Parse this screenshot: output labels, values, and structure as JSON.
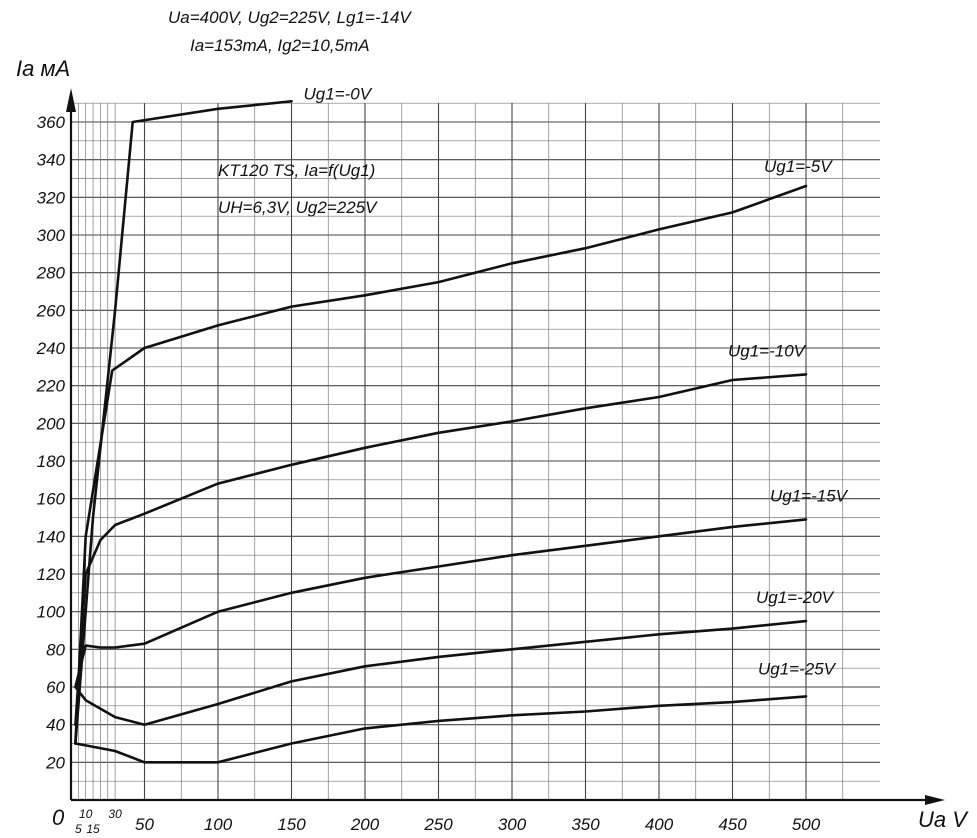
{
  "header": {
    "line1": "Ua=400V, Ug2=225V, Lg1=-14V",
    "line2": "Ia=153mA, Ig2=10,5mA"
  },
  "chart_data": {
    "type": "line",
    "title": "KT120 TS, Ia=f(Ug1)",
    "subtitle": "UH=6,3V, Ug2=225V",
    "xlabel": "Ua V",
    "ylabel": "Ia мA",
    "origin_label": "0",
    "xlim": [
      0,
      500
    ],
    "ylim": [
      0,
      370
    ],
    "grid": true,
    "y_ticks": [
      20,
      40,
      60,
      80,
      100,
      120,
      140,
      160,
      180,
      200,
      220,
      240,
      260,
      280,
      300,
      320,
      340,
      360
    ],
    "x_ticks_major": [
      {
        "value": 50,
        "label": "50"
      },
      {
        "value": 100,
        "label": "100"
      },
      {
        "value": 150,
        "label": "150"
      },
      {
        "value": 200,
        "label": "200"
      },
      {
        "value": 250,
        "label": "250"
      },
      {
        "value": 300,
        "label": "300"
      },
      {
        "value": 350,
        "label": "350"
      },
      {
        "value": 400,
        "label": "400"
      },
      {
        "value": 450,
        "label": "450"
      },
      {
        "value": 500,
        "label": "500"
      }
    ],
    "x_ticks_small_upper": [
      {
        "value": 10,
        "label": "10"
      },
      {
        "value": 30,
        "label": "30"
      }
    ],
    "x_ticks_small_lower": [
      {
        "value": 5,
        "label": "5"
      },
      {
        "value": 15,
        "label": "15"
      }
    ],
    "series": [
      {
        "name": "Ug1=-0V",
        "x": [
          3,
          15,
          30,
          42,
          100,
          150
        ],
        "y": [
          30,
          150,
          260,
          360,
          367,
          371
        ]
      },
      {
        "name": "Ug1=-5V",
        "x": [
          3,
          10,
          28,
          50,
          100,
          150,
          200,
          250,
          300,
          350,
          400,
          450,
          500
        ],
        "y": [
          30,
          140,
          228,
          240,
          252,
          262,
          268,
          275,
          285,
          293,
          303,
          312,
          326
        ]
      },
      {
        "name": "Ug1=-10V",
        "x": [
          3,
          10,
          20,
          30,
          50,
          100,
          150,
          200,
          250,
          300,
          350,
          400,
          450,
          500
        ],
        "y": [
          40,
          120,
          138,
          146,
          152,
          168,
          178,
          187,
          195,
          201,
          208,
          214,
          223,
          226
        ]
      },
      {
        "name": "Ug1=-15V",
        "x": [
          3,
          10,
          20,
          30,
          50,
          100,
          150,
          200,
          250,
          300,
          350,
          400,
          450,
          500
        ],
        "y": [
          60,
          82,
          81,
          81,
          83,
          100,
          110,
          118,
          124,
          130,
          135,
          140,
          145,
          149
        ]
      },
      {
        "name": "Ug1=-20V",
        "x": [
          3,
          10,
          30,
          50,
          100,
          150,
          200,
          250,
          300,
          350,
          400,
          450,
          500
        ],
        "y": [
          60,
          53,
          44,
          40,
          51,
          63,
          71,
          76,
          80,
          84,
          88,
          91,
          95
        ]
      },
      {
        "name": "Ug1=-25V",
        "x": [
          3,
          10,
          30,
          50,
          100,
          150,
          200,
          250,
          300,
          350,
          400,
          450,
          500
        ],
        "y": [
          30,
          29,
          26,
          20,
          20,
          30,
          38,
          42,
          45,
          47,
          50,
          52,
          55
        ]
      }
    ]
  }
}
